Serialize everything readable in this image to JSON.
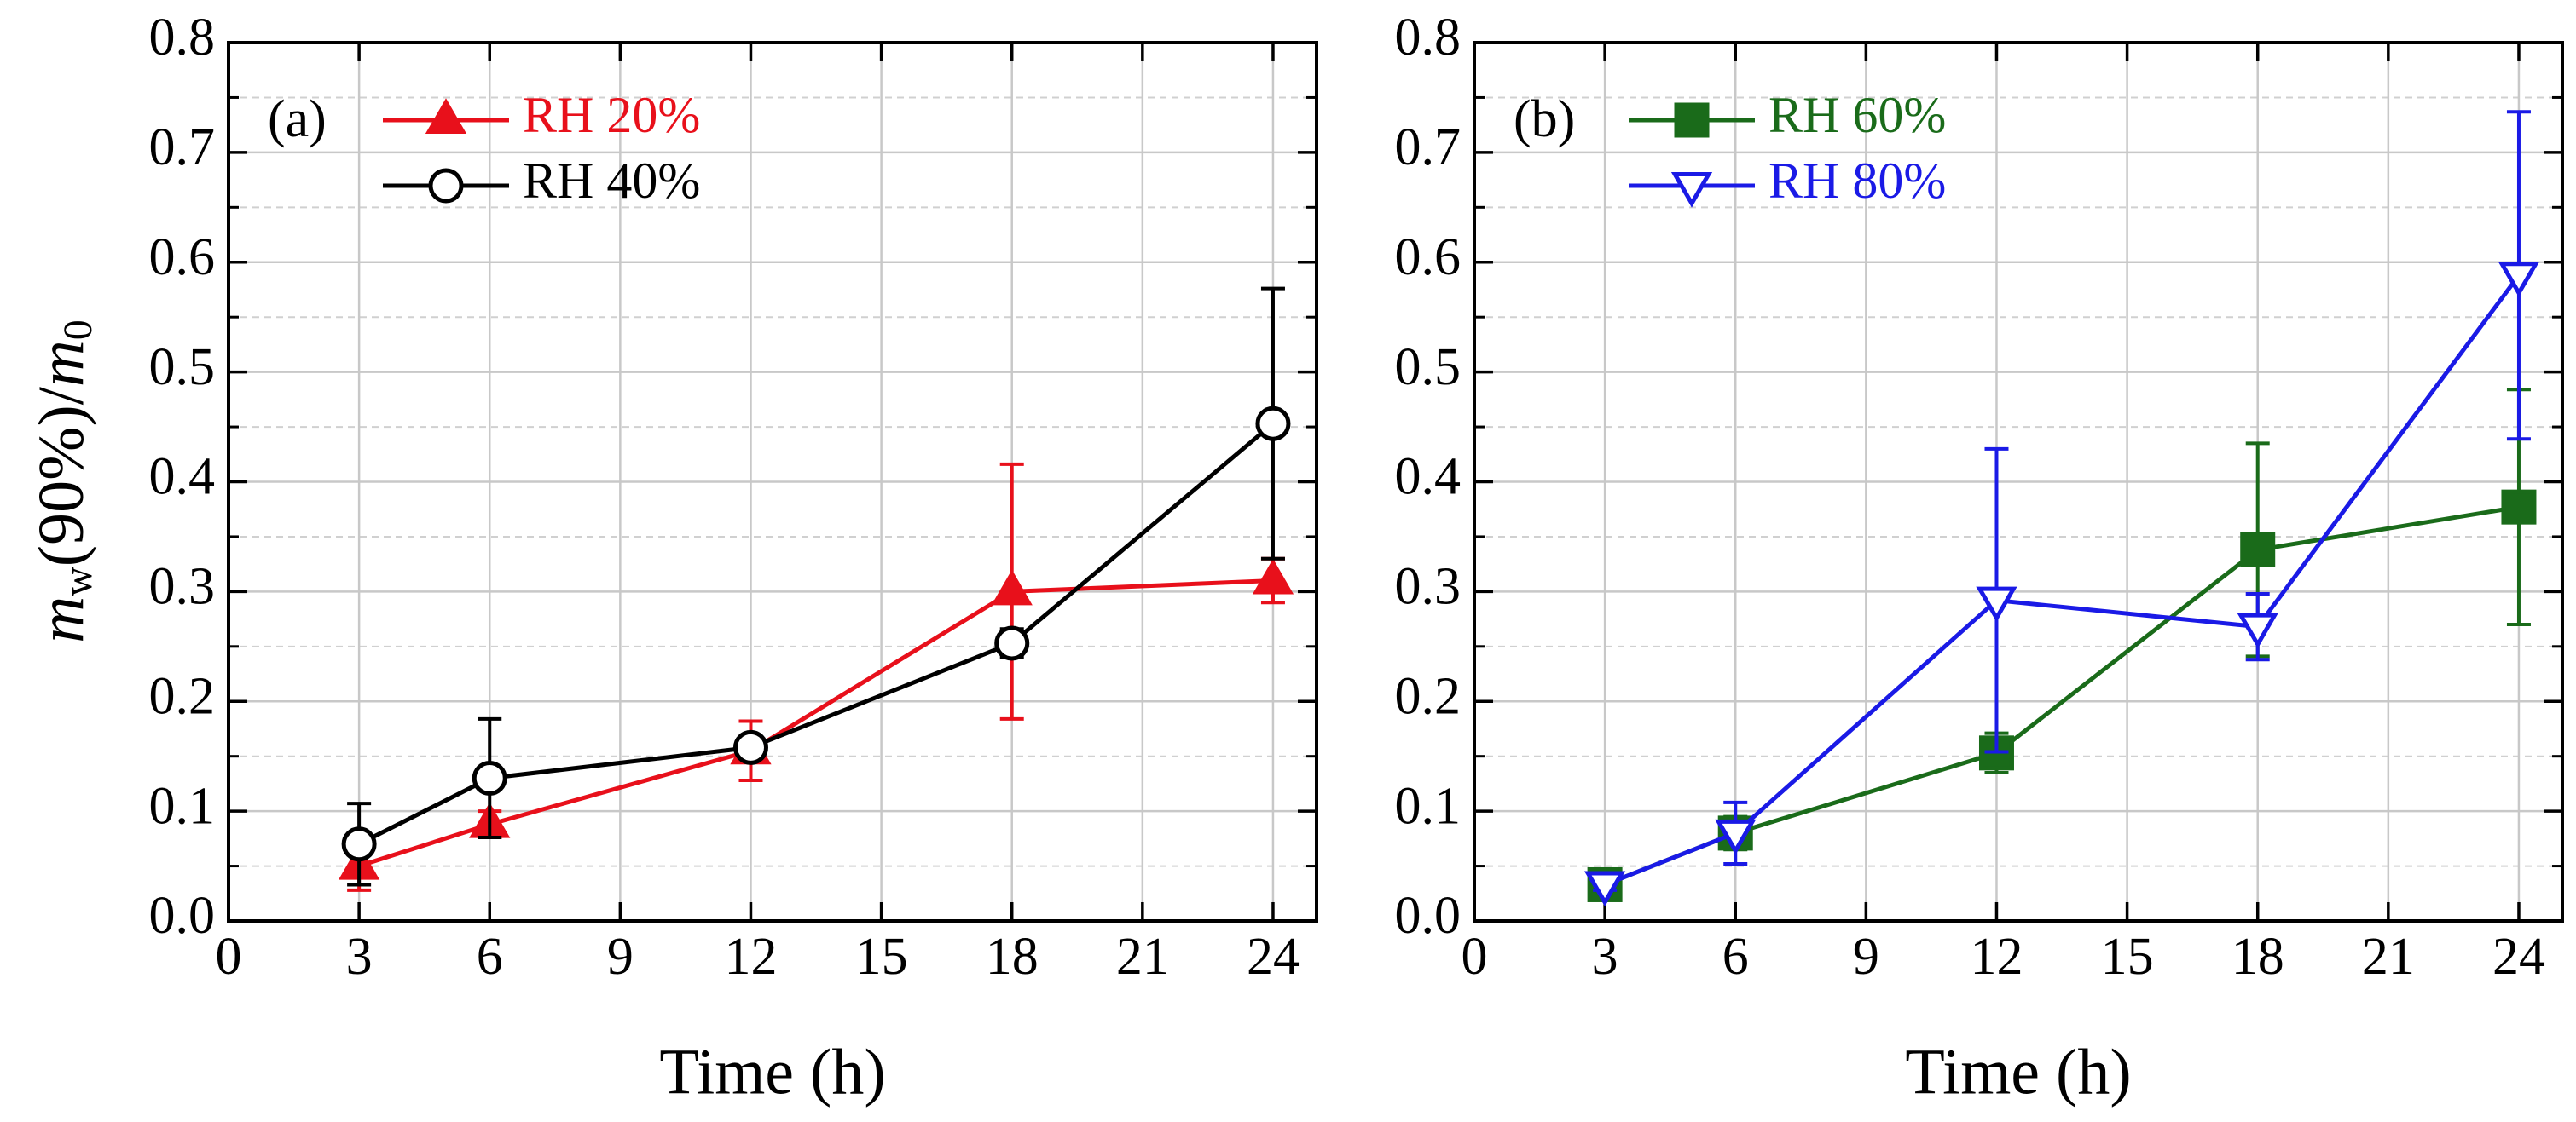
{
  "chart_data": [
    {
      "type": "line",
      "panel_label": "(a)",
      "ylabel": [
        "m",
        "w",
        "(90%)/",
        "m",
        "0"
      ],
      "xlabel": "Time (h)",
      "xlim": [
        0,
        25
      ],
      "xticks": [
        0,
        3,
        6,
        9,
        12,
        15,
        18,
        21,
        24
      ],
      "ylim": [
        0,
        0.8
      ],
      "yticks": [
        {
          "value": 0,
          "label": "0.0"
        },
        0.1,
        0.2,
        0.3,
        0.4,
        0.5,
        0.6,
        0.7,
        0.8
      ],
      "minor_yticks": [
        0.05,
        0.15,
        0.25,
        0.35,
        0.45,
        0.55,
        0.65,
        0.75
      ],
      "grid": true,
      "legend": "upper left",
      "series": [
        {
          "name": "RH 20%",
          "color": "#e8101b",
          "marker": "triangle-up-filled",
          "x": [
            3,
            6,
            12,
            18,
            24
          ],
          "values": [
            0.05,
            0.088,
            0.155,
            0.3,
            0.31
          ],
          "errors": [
            0.022,
            0.012,
            0.027,
            0.116,
            0.02
          ]
        },
        {
          "name": "RH 40%",
          "color": "#000000",
          "marker": "circle-open",
          "x": [
            3,
            6,
            12,
            18,
            24
          ],
          "values": [
            0.07,
            0.13,
            0.158,
            0.253,
            0.453
          ],
          "errors": [
            0.037,
            0.054,
            0.01,
            0.013,
            0.123
          ]
        }
      ]
    },
    {
      "type": "line",
      "panel_label": "(b)",
      "xlabel": "Time (h)",
      "xlim": [
        0,
        25
      ],
      "xticks": [
        0,
        3,
        6,
        9,
        12,
        15,
        18,
        21,
        24
      ],
      "ylim": [
        0,
        0.8
      ],
      "yticks": [
        {
          "value": 0,
          "label": "0.0"
        },
        0.1,
        0.2,
        0.3,
        0.4,
        0.5,
        0.6,
        0.7,
        0.8
      ],
      "minor_yticks": [
        0.05,
        0.15,
        0.25,
        0.35,
        0.45,
        0.55,
        0.65,
        0.75
      ],
      "grid": true,
      "legend": "upper left",
      "series": [
        {
          "name": "RH 60%",
          "color": "#1a6b1a",
          "marker": "square-filled",
          "x": [
            3,
            6,
            12,
            18,
            24
          ],
          "values": [
            0.033,
            0.08,
            0.153,
            0.338,
            0.377
          ],
          "errors": [
            0.005,
            0.015,
            0.018,
            0.097,
            0.107
          ]
        },
        {
          "name": "RH 80%",
          "color": "#1a1ae6",
          "marker": "triangle-down-open",
          "x": [
            3,
            6,
            12,
            18,
            24
          ],
          "values": [
            0.033,
            0.08,
            0.292,
            0.268,
            0.588
          ],
          "errors": [
            0.005,
            0.028,
            0.138,
            0.03,
            0.149
          ]
        }
      ]
    }
  ]
}
